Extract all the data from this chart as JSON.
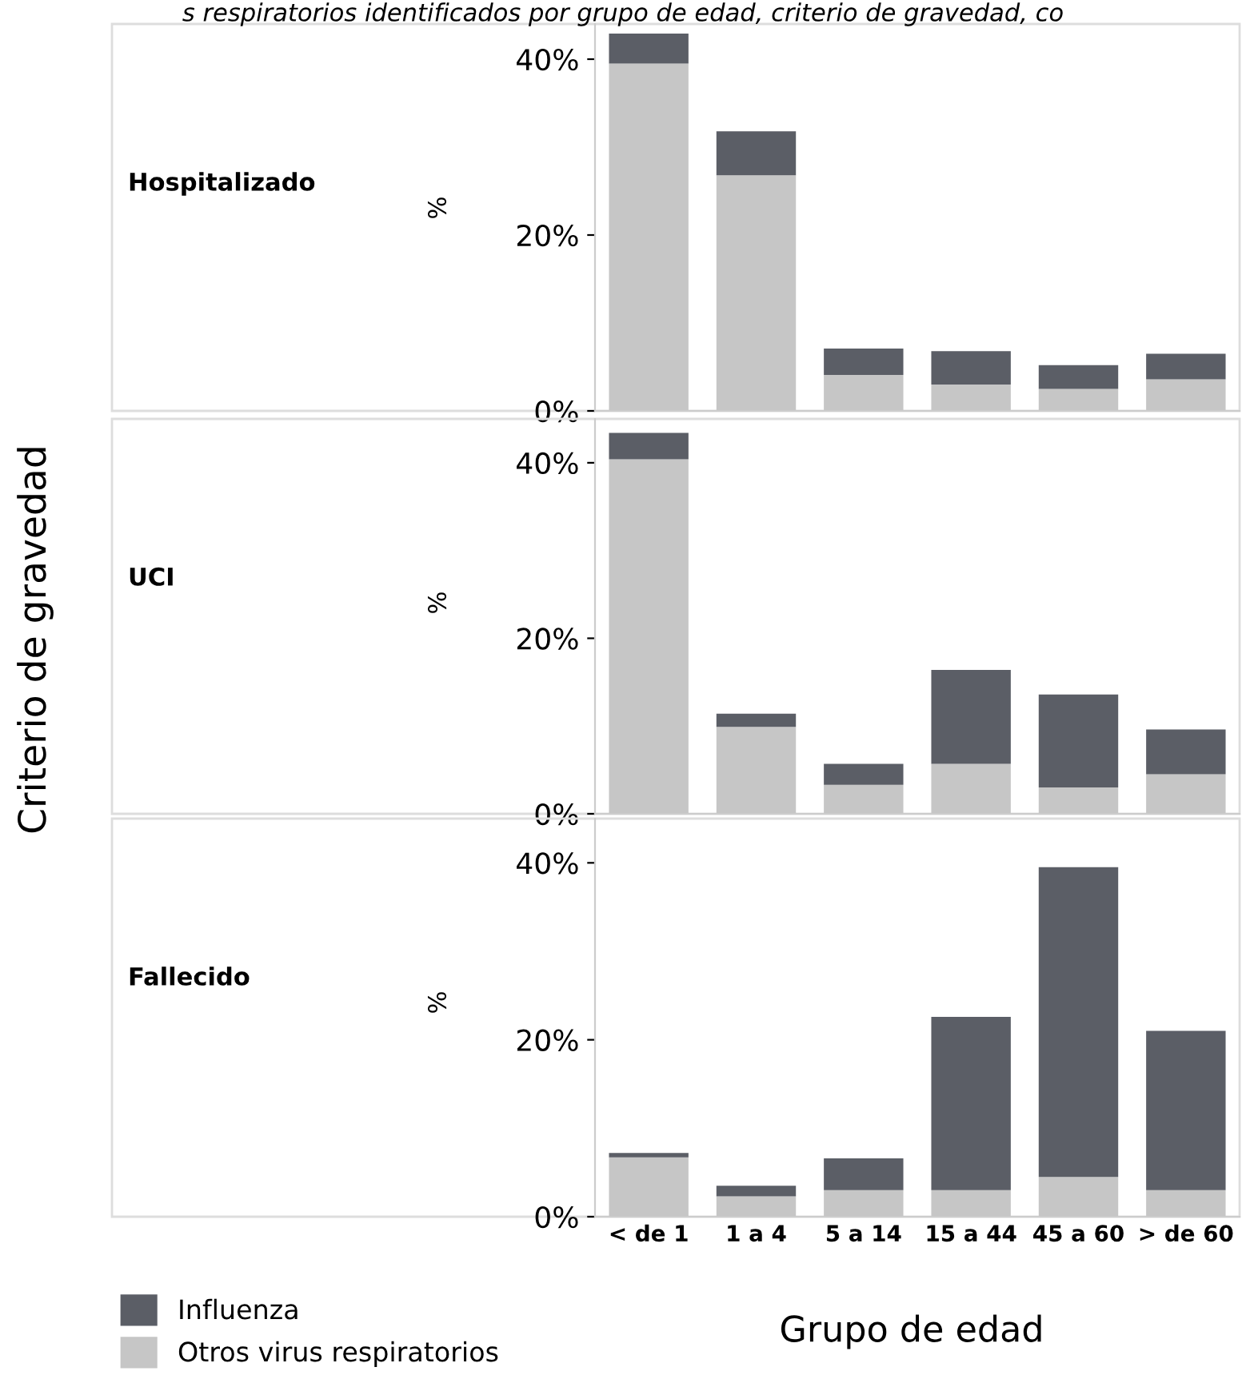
{
  "chart_data": [
    {
      "type": "bar",
      "stacked": true,
      "ylabel": "%",
      "annotations": [
        "Hospitalizado",
        "s respiratorios identificados por grupo de edad, criterio de gravedad, co",
        "Criterio de gravedad"
      ],
      "categories": [
        null,
        null,
        null,
        null,
        null,
        null
      ],
      "series": [
        {
          "name": "Otros virus respiratorios",
          "color": "#c6c6c6",
          "values": [
            39.5,
            26.8,
            4.1,
            3.0,
            2.5,
            3.6
          ]
        },
        {
          "name": "Influenza",
          "color": "#5b5e66",
          "values": [
            3.4,
            5.0,
            3.0,
            3.8,
            2.7,
            2.9
          ]
        }
      ],
      "ylim": [
        0,
        44
      ],
      "yticks": [
        {
          "value": 0,
          "label": "0%"
        },
        {
          "value": 20,
          "label": "20%"
        },
        {
          "value": 40,
          "label": "40%"
        }
      ],
      "tick_labels": "y",
      "grid": false,
      "legend": "bottom left"
    },
    {
      "type": "bar",
      "stacked": true,
      "annotations": [
        "UCI"
      ],
      "ylabel": "%",
      "categories": [
        null,
        null,
        null,
        null,
        null,
        null
      ],
      "series": [
        {
          "color": "#c6c6c6",
          "values": [
            40.4,
            9.9,
            3.3,
            5.7,
            3.0,
            4.5
          ]
        },
        {
          "color": "#5b5e66",
          "values": [
            3.0,
            1.5,
            2.4,
            10.7,
            10.6,
            5.1
          ]
        }
      ],
      "ylim": [
        0,
        45
      ],
      "yticks": [
        {
          "value": 0,
          "label": "0%"
        },
        {
          "value": 20,
          "label": "20%"
        },
        {
          "value": 40,
          "label": "40%"
        }
      ],
      "tick_labels": "y",
      "grid": false
    },
    {
      "type": "bar",
      "stacked": true,
      "annotations": [
        "Fallecido"
      ],
      "ylabel": "%",
      "xlabel": "Grupo de edad",
      "categories": [
        "< de 1",
        "1 a 4",
        "5 a 14",
        "15 a 44",
        "45 a 60",
        "> de 60"
      ],
      "series": [
        {
          "color": "#c6c6c6",
          "values": [
            6.7,
            2.3,
            3.0,
            3.0,
            4.5,
            3.0
          ]
        },
        {
          "color": "#5b5e66",
          "values": [
            0.5,
            1.2,
            3.6,
            19.6,
            35.0,
            18.0
          ]
        }
      ],
      "ylim": [
        0,
        45
      ],
      "yticks": [
        {
          "value": 0,
          "label": "0%"
        },
        {
          "value": 20,
          "label": "20%"
        },
        {
          "value": 40,
          "label": "40%"
        }
      ],
      "grid": false
    }
  ]
}
